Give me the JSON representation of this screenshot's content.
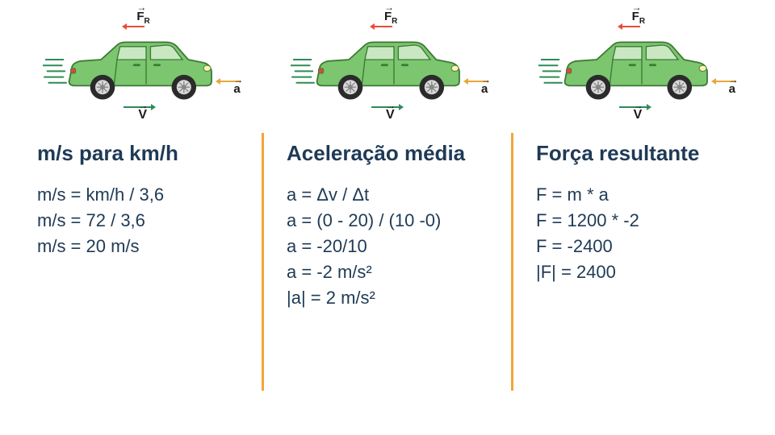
{
  "car": {
    "body_color": "#7bc66f",
    "body_stroke": "#3d7a34",
    "window_color": "#c9e8c2",
    "wheel_outer": "#2b2b2b",
    "wheel_rim": "#d9d9d9",
    "motion_line_color": "#2e8b57",
    "fr_color": "#e74c3c",
    "v_color": "#2e8b57",
    "a_color": "#e6a83a"
  },
  "labels": {
    "fr": "F",
    "fr_sub": "R",
    "v": "V",
    "a": "a"
  },
  "columns": [
    {
      "title": "m/s para km/h",
      "lines": [
        "m/s = km/h / 3,6",
        "m/s = 72 / 3,6",
        "m/s = 20 m/s"
      ]
    },
    {
      "title": "Aceleração média",
      "lines": [
        "a = Δv / Δt",
        "a = (0 - 20) / (10 -0)",
        "a = -20/10",
        "a = -2 m/s²",
        "|a| = 2 m/s²"
      ]
    },
    {
      "title": "Força resultante",
      "lines": [
        "F = m * a",
        "F = 1200 * -2",
        "F = -2400",
        "|F| = 2400"
      ]
    }
  ],
  "style": {
    "text_color": "#1f3a56",
    "divider_color": "#f2a63b",
    "background": "#ffffff",
    "title_fontsize": 26,
    "line_fontsize": 22
  }
}
